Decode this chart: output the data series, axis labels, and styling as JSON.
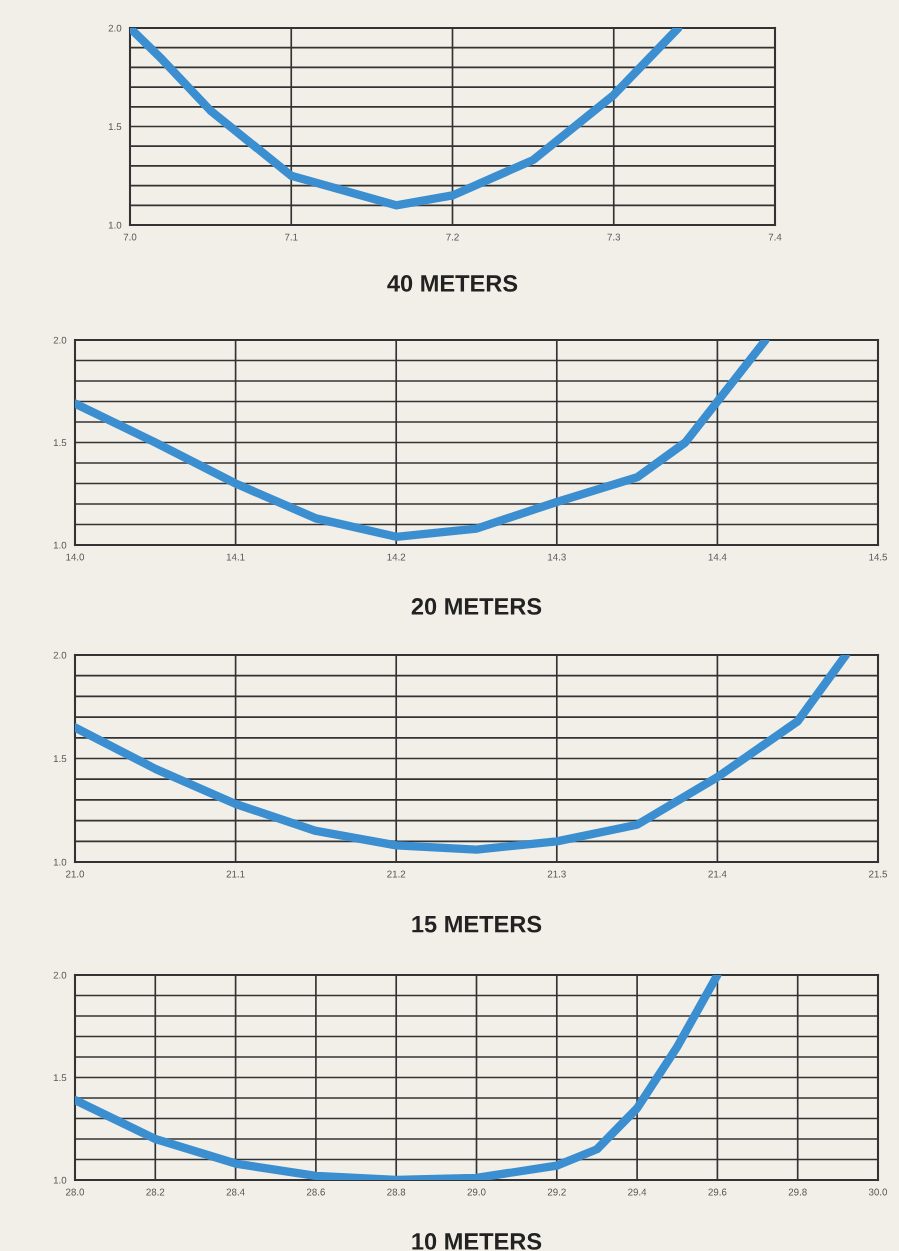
{
  "chart_data": [
    {
      "type": "line",
      "title": "40 METERS",
      "series": [
        {
          "color": "#3b8fd0",
          "x": [
            7.0,
            7.02,
            7.05,
            7.1,
            7.165,
            7.2,
            7.25,
            7.3,
            7.34
          ],
          "values": [
            2.0,
            1.84,
            1.58,
            1.25,
            1.1,
            1.15,
            1.33,
            1.66,
            2.0
          ]
        }
      ],
      "xlim": [
        7.0,
        7.4
      ],
      "xticks": [
        {
          "value": 7.0,
          "label": "7.0"
        },
        7.1,
        7.2,
        7.3,
        7.4
      ],
      "ylim": [
        1.0,
        2.0
      ],
      "yticks": [
        {
          "value": 1.0,
          "label": "1.0"
        },
        {
          "value": 1.1,
          "label": null
        },
        {
          "value": 1.2,
          "label": null
        },
        {
          "value": 1.3,
          "label": null
        },
        {
          "value": 1.4,
          "label": null
        },
        {
          "value": 1.5,
          "label": "1.5"
        },
        {
          "value": 1.6,
          "label": null
        },
        {
          "value": 1.7,
          "label": null
        },
        {
          "value": 1.8,
          "label": null
        },
        {
          "value": 1.9,
          "label": null
        },
        {
          "value": 2.0,
          "label": "2.0"
        }
      ],
      "grid": true,
      "legend": false,
      "marker": "none",
      "line_style": "solid"
    },
    {
      "type": "line",
      "title": "20 METERS",
      "series": [
        {
          "color": "#3b8fd0",
          "x": [
            14.0,
            14.05,
            14.1,
            14.15,
            14.2,
            14.25,
            14.3,
            14.35,
            14.38,
            14.4,
            14.43
          ],
          "values": [
            1.69,
            1.5,
            1.3,
            1.13,
            1.04,
            1.08,
            1.21,
            1.33,
            1.5,
            1.7,
            2.0
          ]
        }
      ],
      "xlim": [
        14.0,
        14.5
      ],
      "xticks": [
        {
          "value": 14.0,
          "label": "14.0"
        },
        14.1,
        14.2,
        14.3,
        14.4,
        14.5
      ],
      "ylim": [
        1.0,
        2.0
      ],
      "yticks": [
        {
          "value": 1.0,
          "label": "1.0"
        },
        {
          "value": 1.1,
          "label": null
        },
        {
          "value": 1.2,
          "label": null
        },
        {
          "value": 1.3,
          "label": null
        },
        {
          "value": 1.4,
          "label": null
        },
        {
          "value": 1.5,
          "label": "1.5"
        },
        {
          "value": 1.6,
          "label": null
        },
        {
          "value": 1.7,
          "label": null
        },
        {
          "value": 1.8,
          "label": null
        },
        {
          "value": 1.9,
          "label": null
        },
        {
          "value": 2.0,
          "label": "2.0"
        }
      ],
      "grid": true,
      "legend": false,
      "marker": "none",
      "line_style": "solid"
    },
    {
      "type": "line",
      "title": "15 METERS",
      "series": [
        {
          "color": "#3b8fd0",
          "x": [
            21.0,
            21.05,
            21.1,
            21.15,
            21.2,
            21.25,
            21.3,
            21.35,
            21.4,
            21.45,
            21.48
          ],
          "values": [
            1.65,
            1.45,
            1.28,
            1.15,
            1.08,
            1.06,
            1.1,
            1.18,
            1.41,
            1.68,
            2.0
          ]
        }
      ],
      "xlim": [
        21.0,
        21.5
      ],
      "xticks": [
        {
          "value": 21.0,
          "label": "21.0"
        },
        21.1,
        21.2,
        21.3,
        21.4,
        21.5
      ],
      "ylim": [
        1.0,
        2.0
      ],
      "yticks": [
        {
          "value": 1.0,
          "label": "1.0"
        },
        {
          "value": 1.1,
          "label": null
        },
        {
          "value": 1.2,
          "label": null
        },
        {
          "value": 1.3,
          "label": null
        },
        {
          "value": 1.4,
          "label": null
        },
        {
          "value": 1.5,
          "label": "1.5"
        },
        {
          "value": 1.6,
          "label": null
        },
        {
          "value": 1.7,
          "label": null
        },
        {
          "value": 1.8,
          "label": null
        },
        {
          "value": 1.9,
          "label": null
        },
        {
          "value": 2.0,
          "label": "2.0"
        }
      ],
      "grid": true,
      "legend": false,
      "marker": "none",
      "line_style": "solid"
    },
    {
      "type": "line",
      "title": "10 METERS",
      "series": [
        {
          "color": "#3b8fd0",
          "x": [
            28.0,
            28.2,
            28.4,
            28.6,
            28.8,
            29.0,
            29.2,
            29.3,
            29.4,
            29.5,
            29.6
          ],
          "values": [
            1.39,
            1.2,
            1.08,
            1.02,
            1.0,
            1.01,
            1.07,
            1.15,
            1.35,
            1.65,
            2.0
          ]
        }
      ],
      "xlim": [
        28.0,
        30.0
      ],
      "xticks": [
        {
          "value": 28.0,
          "label": "28.0"
        },
        28.2,
        28.4,
        28.6,
        28.8,
        {
          "value": 29.0,
          "label": "29.0"
        },
        29.2,
        29.4,
        29.6,
        29.8,
        {
          "value": 30.0,
          "label": "30.0"
        }
      ],
      "ylim": [
        1.0,
        2.0
      ],
      "yticks": [
        {
          "value": 1.0,
          "label": "1.0"
        },
        {
          "value": 1.1,
          "label": null
        },
        {
          "value": 1.2,
          "label": null
        },
        {
          "value": 1.3,
          "label": null
        },
        {
          "value": 1.4,
          "label": null
        },
        {
          "value": 1.5,
          "label": "1.5"
        },
        {
          "value": 1.6,
          "label": null
        },
        {
          "value": 1.7,
          "label": null
        },
        {
          "value": 1.8,
          "label": null
        },
        {
          "value": 1.9,
          "label": null
        },
        {
          "value": 2.0,
          "label": "2.0"
        }
      ],
      "grid": true,
      "legend": false,
      "marker": "none",
      "line_style": "solid"
    }
  ]
}
